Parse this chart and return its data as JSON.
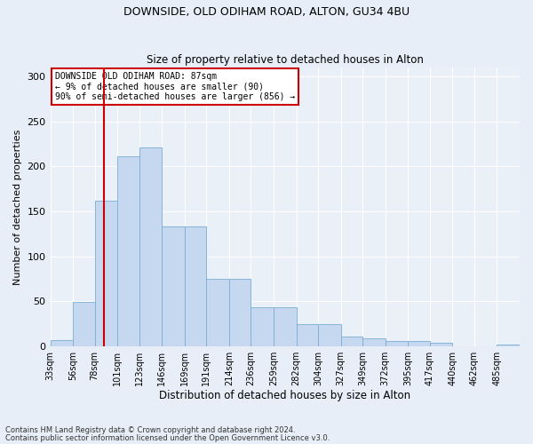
{
  "title1": "DOWNSIDE, OLD ODIHAM ROAD, ALTON, GU34 4BU",
  "title2": "Size of property relative to detached houses in Alton",
  "xlabel": "Distribution of detached houses by size in Alton",
  "ylabel": "Number of detached properties",
  "bar_labels": [
    "33sqm",
    "56sqm",
    "78sqm",
    "101sqm",
    "123sqm",
    "146sqm",
    "169sqm",
    "191sqm",
    "214sqm",
    "236sqm",
    "259sqm",
    "282sqm",
    "304sqm",
    "327sqm",
    "349sqm",
    "372sqm",
    "395sqm",
    "417sqm",
    "440sqm",
    "462sqm",
    "485sqm"
  ],
  "bar_values": [
    7,
    49,
    162,
    211,
    221,
    133,
    133,
    75,
    75,
    43,
    43,
    24,
    24,
    11,
    9,
    6,
    6,
    4,
    0,
    0,
    2
  ],
  "bar_color": "#c5d8ef",
  "bar_edge_color": "#7aadd4",
  "annotation_text": "DOWNSIDE OLD ODIHAM ROAD: 87sqm\n← 9% of detached houses are smaller (90)\n90% of semi-detached houses are larger (856) →",
  "vline_x": 87,
  "vline_color": "#cc0000",
  "annotation_box_color": "#ffffff",
  "annotation_box_edge_color": "#cc0000",
  "footnote1": "Contains HM Land Registry data © Crown copyright and database right 2024.",
  "footnote2": "Contains public sector information licensed under the Open Government Licence v3.0.",
  "ylim": [
    0,
    310
  ],
  "bg_color": "#e8eef7",
  "plot_bg_color": "#eaf0f8",
  "bin_edges": [
    33,
    56,
    78,
    101,
    123,
    146,
    169,
    191,
    214,
    236,
    259,
    282,
    304,
    327,
    349,
    372,
    395,
    417,
    440,
    462,
    485,
    508
  ]
}
